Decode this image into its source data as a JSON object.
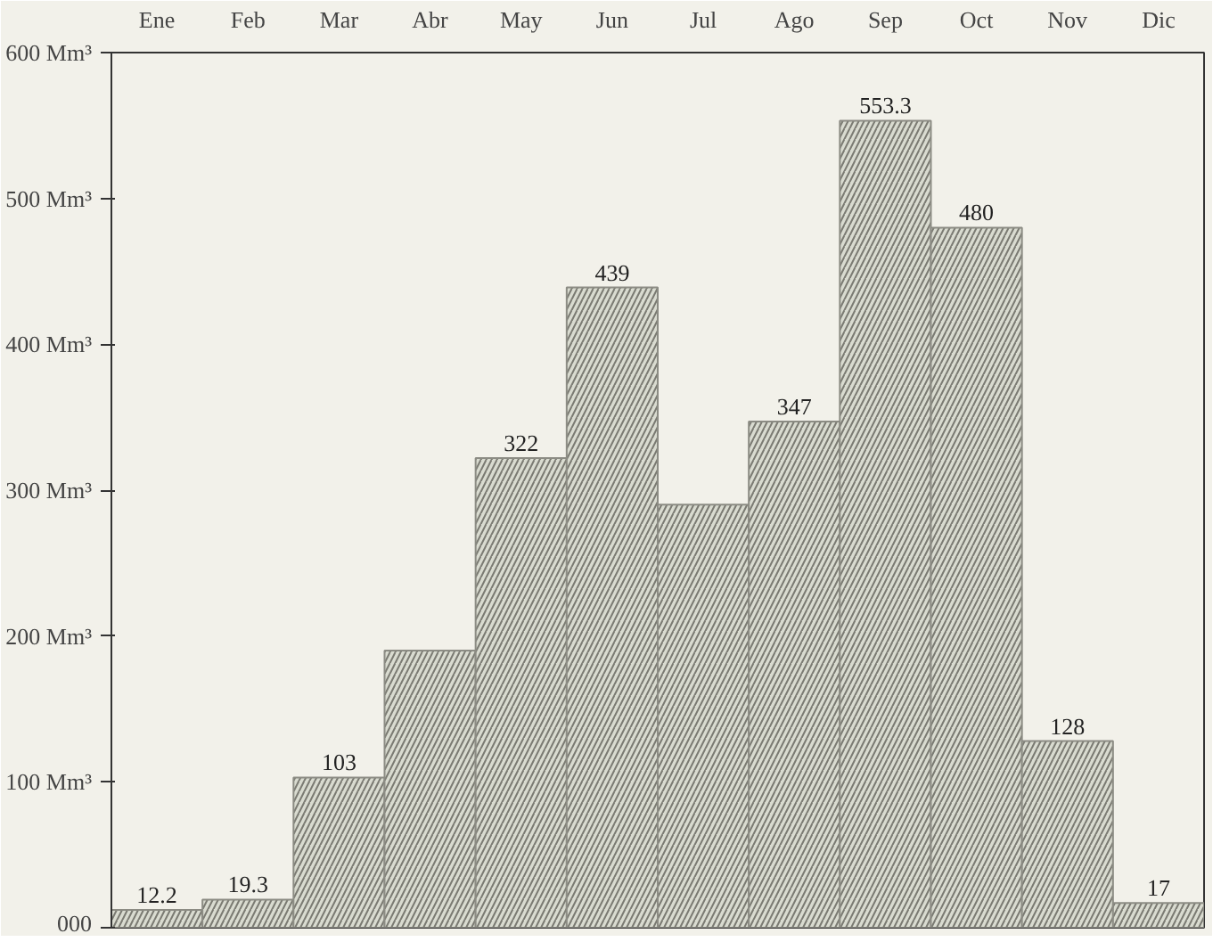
{
  "chart_data": {
    "type": "bar",
    "categories": [
      "Ene",
      "Feb",
      "Mar",
      "Abr",
      "May",
      "Jun",
      "Jul",
      "Ago",
      "Sep",
      "Oct",
      "Nov",
      "Dic"
    ],
    "values": [
      12.2,
      19.3,
      103,
      190,
      322,
      439,
      290,
      347,
      553.3,
      480,
      128,
      17
    ],
    "value_labels": [
      "12.2",
      "19.3",
      "103",
      null,
      "322",
      "439",
      null,
      "347",
      "553.3",
      "480",
      "128",
      "17"
    ],
    "color": "#d9dbd0",
    "ylim": [
      0,
      600
    ],
    "yticks": [
      {
        "value": 0,
        "label": "000"
      },
      {
        "value": 100,
        "label": "100 Mm³"
      },
      {
        "value": 200,
        "label": "200 Mm³"
      },
      {
        "value": 300,
        "label": "300 Mm³"
      },
      {
        "value": 400,
        "label": "400 Mm³"
      },
      {
        "value": 500,
        "label": "500 Mm³"
      },
      {
        "value": 600,
        "label": "600 Mm³"
      }
    ],
    "grid": false
  }
}
